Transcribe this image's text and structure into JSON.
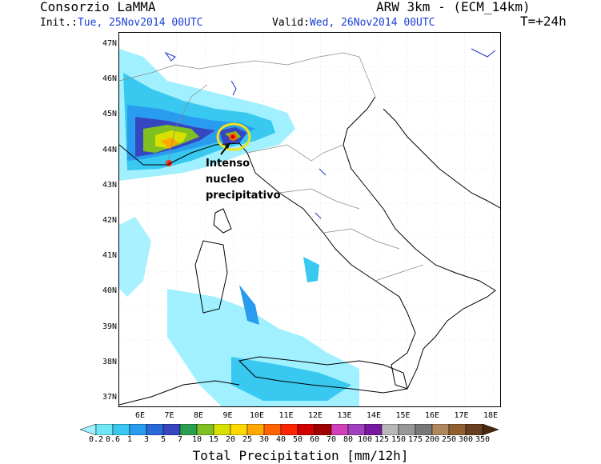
{
  "header": {
    "org": "Consorzio LaMMA",
    "model": "ARW 3km - (ECM_14km)",
    "init_label": "Init.:",
    "init_value": "Tue, 25Nov2014 00UTC",
    "valid_label": "Valid:",
    "valid_value": "Wed, 26Nov2014 00UTC",
    "lead_time": "T=+24h"
  },
  "map": {
    "lat_labels": [
      "47N",
      "46N",
      "45N",
      "44N",
      "43N",
      "42N",
      "41N",
      "40N",
      "39N",
      "38N",
      "37N"
    ],
    "lon_labels": [
      "6E",
      "7E",
      "8E",
      "9E",
      "10E",
      "11E",
      "12E",
      "13E",
      "14E",
      "15E",
      "16E",
      "17E",
      "18E"
    ],
    "annotation": {
      "line1": "Intenso",
      "line2": "nucleo",
      "line3": "precipitativo"
    },
    "colors": {
      "coast": "#000000",
      "borders": "#888888",
      "highlight_ring": "#f2e21a",
      "lakes": "#2030c8"
    }
  },
  "colorbar": {
    "title": "Total Precipitation [mm/12h]",
    "levels": [
      "0.2",
      "0.6",
      "1",
      "3",
      "5",
      "7",
      "10",
      "15",
      "20",
      "25",
      "30",
      "40",
      "50",
      "60",
      "70",
      "80",
      "100",
      "125",
      "150",
      "175",
      "200",
      "250",
      "300",
      "350"
    ],
    "colors": [
      "#a0f0ff",
      "#70e6f4",
      "#38c8f0",
      "#2a9cf0",
      "#2868d8",
      "#3646c0",
      "#28a050",
      "#80c020",
      "#d8e000",
      "#ffd800",
      "#ffa800",
      "#ff6400",
      "#ff2400",
      "#d00000",
      "#a00000",
      "#d040b8",
      "#a040c0",
      "#7818a0",
      "#b8b8b8",
      "#989898",
      "#787878",
      "#b08860",
      "#906030",
      "#684020",
      "#4a2810"
    ]
  }
}
